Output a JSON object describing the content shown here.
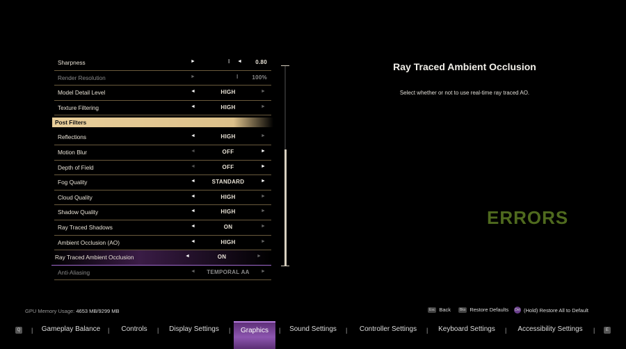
{
  "settings": {
    "sharpness": {
      "label": "Sharpness",
      "value": "0.80"
    },
    "render_resolution": {
      "label": "Render Resolution",
      "value": "100%"
    },
    "rows_top": [
      {
        "label": "Model Detail Level",
        "value": "HIGH"
      },
      {
        "label": "Texture Filtering",
        "value": "HIGH"
      }
    ],
    "section_header": "Post Filters",
    "rows": [
      {
        "label": "Reflections",
        "value": "HIGH"
      },
      {
        "label": "Motion Blur",
        "value": "OFF"
      },
      {
        "label": "Depth of Field",
        "value": "OFF"
      },
      {
        "label": "Fog Quality",
        "value": "STANDARD"
      },
      {
        "label": "Cloud Quality",
        "value": "HIGH"
      },
      {
        "label": "Shadow Quality",
        "value": "HIGH"
      },
      {
        "label": "Ray Traced Shadows",
        "value": "ON"
      },
      {
        "label": "Ambient Occlusion (AO)",
        "value": "HIGH"
      },
      {
        "label": "Ray Traced Ambient Occlusion",
        "value": "ON"
      },
      {
        "label": "Anti-Aliasing",
        "value": "TEMPORAL AA"
      }
    ]
  },
  "description": {
    "title": "Ray Traced Ambient Occlusion",
    "text": "Select whether or not to use real-time ray traced AO."
  },
  "watermark": "ERRORS",
  "gpu": {
    "label": "GPU Memory Usage:",
    "value": "4653 MB/9299 MB"
  },
  "hints": {
    "back": "Back",
    "restore": "Restore Defaults",
    "restore_all": "(Hold) Restore All to Default",
    "back_key": "Esc",
    "restore_key": "Bks",
    "restore_all_key": "Del"
  },
  "tabs": {
    "left_key": "Q",
    "right_key": "E",
    "items": [
      "Gameplay Balance",
      "Controls",
      "Display Settings",
      "Graphics",
      "Sound Settings",
      "Controller Settings",
      "Keyboard Settings",
      "Accessibility Settings"
    ],
    "active": "Graphics",
    "separator": "|"
  },
  "colors": {
    "accent_purple": "#8d56b0",
    "section_gold": "#e9cf9b",
    "watermark_green": "#4f6a1e"
  },
  "icons": {
    "left_arrow": "◄",
    "right_arrow": "►",
    "slider_marker": "I"
  }
}
